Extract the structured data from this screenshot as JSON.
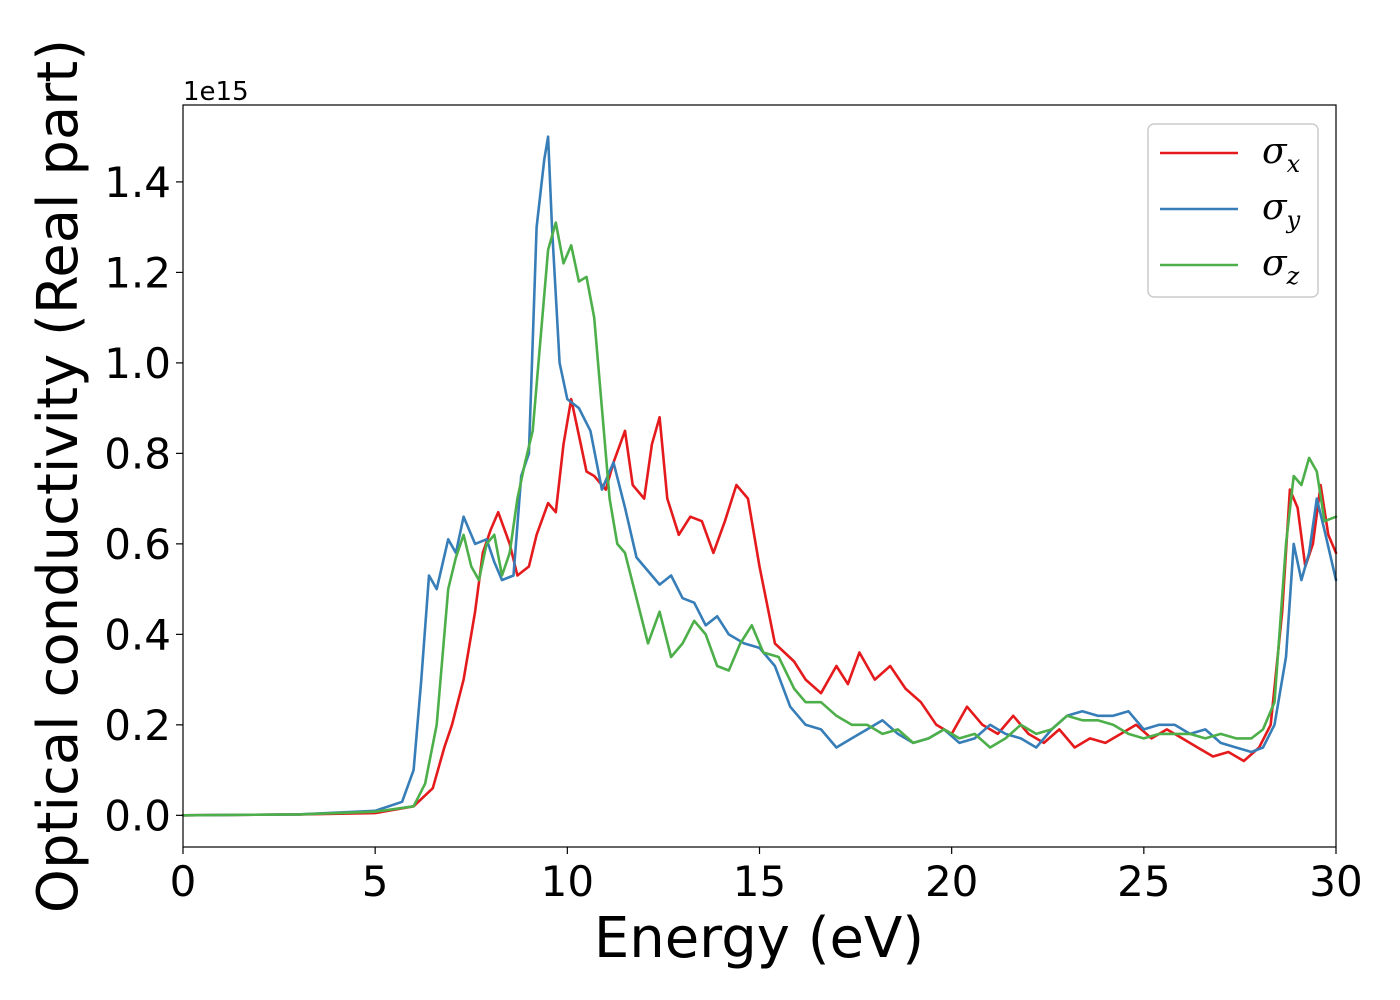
{
  "chart_data": {
    "type": "line",
    "xlabel": "Energy (eV)",
    "ylabel": "Optical conductivity (Real part)",
    "y_offset_label": "1e15",
    "xlim": [
      0,
      30
    ],
    "ylim": [
      -0.07,
      1.57
    ],
    "xticks": [
      0,
      5,
      10,
      15,
      20,
      25,
      30
    ],
    "xtick_labels": [
      "0",
      "5",
      "10",
      "15",
      "20",
      "25",
      "30"
    ],
    "yticks": [
      0.0,
      0.2,
      0.4,
      0.6,
      0.8,
      1.0,
      1.2,
      1.4
    ],
    "ytick_labels": [
      "0.0",
      "0.2",
      "0.4",
      "0.6",
      "0.8",
      "1.0",
      "1.2",
      "1.4"
    ],
    "grid": false,
    "legend_position": "top-right",
    "series": [
      {
        "name": "σx",
        "legend_base": "σ",
        "legend_sub": "x",
        "color": "#e41a1c",
        "x": [
          0,
          3,
          5,
          6,
          6.5,
          6.8,
          7.0,
          7.3,
          7.6,
          7.8,
          8.0,
          8.2,
          8.5,
          8.7,
          9.0,
          9.2,
          9.5,
          9.7,
          9.9,
          10.1,
          10.3,
          10.5,
          10.7,
          11.0,
          11.2,
          11.5,
          11.7,
          12.0,
          12.2,
          12.4,
          12.6,
          12.9,
          13.2,
          13.5,
          13.8,
          14.1,
          14.4,
          14.7,
          15.0,
          15.4,
          15.9,
          16.2,
          16.6,
          17.0,
          17.3,
          17.6,
          18.0,
          18.4,
          18.8,
          19.2,
          19.6,
          20.0,
          20.4,
          20.8,
          21.2,
          21.6,
          22.0,
          22.4,
          22.8,
          23.2,
          23.6,
          24.0,
          24.4,
          24.8,
          25.2,
          25.6,
          26.0,
          26.4,
          26.8,
          27.2,
          27.6,
          28.0,
          28.3,
          28.6,
          28.8,
          29.0,
          29.2,
          29.4,
          29.6,
          29.8,
          30.0
        ],
        "y": [
          0.0,
          0.002,
          0.005,
          0.02,
          0.06,
          0.15,
          0.2,
          0.3,
          0.45,
          0.58,
          0.63,
          0.67,
          0.6,
          0.53,
          0.55,
          0.62,
          0.69,
          0.67,
          0.82,
          0.92,
          0.84,
          0.76,
          0.75,
          0.72,
          0.78,
          0.85,
          0.73,
          0.7,
          0.82,
          0.88,
          0.7,
          0.62,
          0.66,
          0.65,
          0.58,
          0.65,
          0.73,
          0.7,
          0.55,
          0.38,
          0.34,
          0.3,
          0.27,
          0.33,
          0.29,
          0.36,
          0.3,
          0.33,
          0.28,
          0.25,
          0.2,
          0.18,
          0.24,
          0.2,
          0.18,
          0.22,
          0.18,
          0.16,
          0.19,
          0.15,
          0.17,
          0.16,
          0.18,
          0.2,
          0.17,
          0.19,
          0.17,
          0.15,
          0.13,
          0.14,
          0.12,
          0.15,
          0.2,
          0.45,
          0.72,
          0.68,
          0.55,
          0.6,
          0.73,
          0.62,
          0.58
        ]
      },
      {
        "name": "σy",
        "legend_base": "σ",
        "legend_sub": "y",
        "color": "#377eb8",
        "x": [
          0,
          3,
          5,
          5.7,
          6.0,
          6.2,
          6.4,
          6.6,
          6.9,
          7.1,
          7.3,
          7.6,
          7.9,
          8.1,
          8.3,
          8.6,
          8.8,
          9.0,
          9.2,
          9.4,
          9.5,
          9.6,
          9.8,
          10.0,
          10.3,
          10.6,
          10.9,
          11.2,
          11.5,
          11.8,
          12.1,
          12.4,
          12.7,
          13.0,
          13.3,
          13.6,
          13.9,
          14.2,
          14.6,
          15.0,
          15.4,
          15.8,
          16.2,
          16.6,
          17.0,
          17.4,
          17.8,
          18.2,
          18.6,
          19.0,
          19.4,
          19.8,
          20.2,
          20.6,
          21.0,
          21.4,
          21.8,
          22.2,
          22.6,
          23.0,
          23.4,
          23.8,
          24.2,
          24.6,
          25.0,
          25.4,
          25.8,
          26.2,
          26.6,
          27.0,
          27.4,
          27.8,
          28.1,
          28.4,
          28.7,
          28.9,
          29.1,
          29.3,
          29.5,
          29.7,
          30.0
        ],
        "y": [
          0.0,
          0.002,
          0.01,
          0.03,
          0.1,
          0.3,
          0.53,
          0.5,
          0.61,
          0.58,
          0.66,
          0.6,
          0.61,
          0.56,
          0.52,
          0.53,
          0.75,
          0.8,
          1.3,
          1.45,
          1.5,
          1.3,
          1.0,
          0.92,
          0.9,
          0.85,
          0.72,
          0.78,
          0.68,
          0.57,
          0.54,
          0.51,
          0.53,
          0.48,
          0.47,
          0.42,
          0.44,
          0.4,
          0.38,
          0.37,
          0.33,
          0.24,
          0.2,
          0.19,
          0.15,
          0.17,
          0.19,
          0.21,
          0.18,
          0.16,
          0.17,
          0.19,
          0.16,
          0.17,
          0.2,
          0.18,
          0.17,
          0.15,
          0.19,
          0.22,
          0.23,
          0.22,
          0.22,
          0.23,
          0.19,
          0.2,
          0.2,
          0.18,
          0.19,
          0.16,
          0.15,
          0.14,
          0.15,
          0.2,
          0.35,
          0.6,
          0.52,
          0.58,
          0.7,
          0.63,
          0.52
        ]
      },
      {
        "name": "σz",
        "legend_base": "σ",
        "legend_sub": "z",
        "color": "#4daf4a",
        "x": [
          0,
          3,
          5,
          6.0,
          6.3,
          6.6,
          6.9,
          7.1,
          7.3,
          7.5,
          7.7,
          7.9,
          8.1,
          8.3,
          8.5,
          8.7,
          8.9,
          9.1,
          9.3,
          9.5,
          9.7,
          9.9,
          10.1,
          10.3,
          10.5,
          10.7,
          10.9,
          11.1,
          11.3,
          11.5,
          11.8,
          12.1,
          12.4,
          12.7,
          13.0,
          13.3,
          13.6,
          13.9,
          14.2,
          14.5,
          14.8,
          15.1,
          15.5,
          15.9,
          16.2,
          16.6,
          17.0,
          17.4,
          17.8,
          18.2,
          18.6,
          19.0,
          19.4,
          19.8,
          20.2,
          20.6,
          21.0,
          21.4,
          21.8,
          22.2,
          22.6,
          23.0,
          23.4,
          23.8,
          24.2,
          24.6,
          25.0,
          25.4,
          25.8,
          26.2,
          26.6,
          27.0,
          27.4,
          27.8,
          28.1,
          28.4,
          28.7,
          28.9,
          29.1,
          29.3,
          29.5,
          29.7,
          30.0
        ],
        "y": [
          0.0,
          0.002,
          0.008,
          0.02,
          0.07,
          0.2,
          0.5,
          0.57,
          0.62,
          0.55,
          0.52,
          0.6,
          0.62,
          0.53,
          0.58,
          0.7,
          0.78,
          0.85,
          1.05,
          1.25,
          1.31,
          1.22,
          1.26,
          1.18,
          1.19,
          1.1,
          0.9,
          0.7,
          0.6,
          0.58,
          0.48,
          0.38,
          0.45,
          0.35,
          0.38,
          0.43,
          0.4,
          0.33,
          0.32,
          0.38,
          0.42,
          0.36,
          0.35,
          0.28,
          0.25,
          0.25,
          0.22,
          0.2,
          0.2,
          0.18,
          0.19,
          0.16,
          0.17,
          0.19,
          0.17,
          0.18,
          0.15,
          0.17,
          0.2,
          0.18,
          0.19,
          0.22,
          0.21,
          0.21,
          0.2,
          0.18,
          0.17,
          0.18,
          0.18,
          0.18,
          0.17,
          0.18,
          0.17,
          0.17,
          0.19,
          0.25,
          0.6,
          0.75,
          0.73,
          0.79,
          0.76,
          0.65,
          0.66
        ]
      }
    ]
  }
}
